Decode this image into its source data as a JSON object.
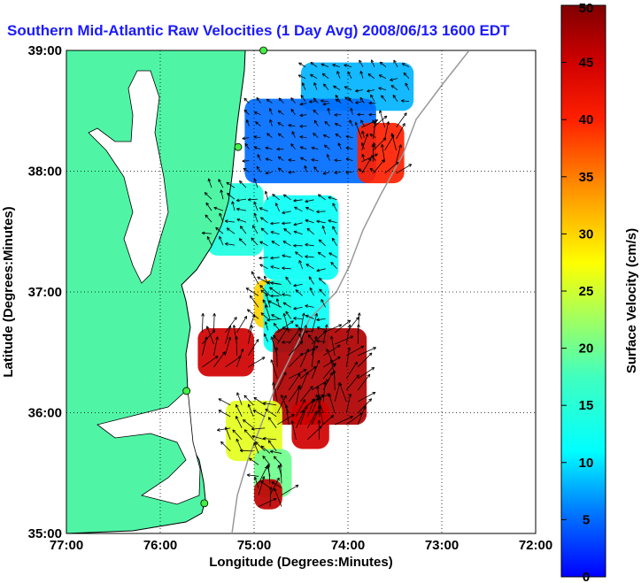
{
  "chart_data": {
    "type": "heatmap",
    "title": "Southern Mid-Atlantic Raw Velocities (1 Day Avg) 2008/06/13 1600 EDT",
    "xlabel": "Longitude (Degrees:Minutes)",
    "ylabel": "Latitude (Degrees:Minutes)",
    "colorbar_label": "Surface Velocity (cm/s)",
    "xlim": [
      -77,
      -72
    ],
    "ylim": [
      35,
      39
    ],
    "x_ticks": [
      {
        "value": -77,
        "label": "77:00"
      },
      {
        "value": -76,
        "label": "76:00"
      },
      {
        "value": -75,
        "label": "75:00"
      },
      {
        "value": -74,
        "label": "74:00"
      },
      {
        "value": -73,
        "label": "73:00"
      },
      {
        "value": -72,
        "label": "72:00"
      }
    ],
    "y_ticks": [
      {
        "value": 35,
        "label": "35:00"
      },
      {
        "value": 36,
        "label": "36:00"
      },
      {
        "value": 37,
        "label": "37:00"
      },
      {
        "value": 38,
        "label": "38:00"
      },
      {
        "value": 39,
        "label": "39:00"
      }
    ],
    "colorbar_range": [
      0,
      50
    ],
    "colorbar_ticks": [
      0,
      5,
      10,
      15,
      20,
      25,
      30,
      35,
      40,
      45,
      50
    ],
    "grid": true,
    "regions": [
      {
        "lon": [
          -74.5,
          -73.3
        ],
        "lat": [
          38.5,
          38.9
        ],
        "speed": 8
      },
      {
        "lon": [
          -75.1,
          -73.7
        ],
        "lat": [
          37.9,
          38.6
        ],
        "speed": 5
      },
      {
        "lon": [
          -75.5,
          -74.9
        ],
        "lat": [
          37.3,
          37.9
        ],
        "speed": 14
      },
      {
        "lon": [
          -74.9,
          -74.1
        ],
        "lat": [
          37.1,
          37.8
        ],
        "speed": 12
      },
      {
        "lon": [
          -73.9,
          -73.4
        ],
        "lat": [
          37.9,
          38.4
        ],
        "speed": 40
      },
      {
        "lon": [
          -75.0,
          -74.6
        ],
        "lat": [
          36.7,
          37.1
        ],
        "speed": 30
      },
      {
        "lon": [
          -74.9,
          -74.2
        ],
        "lat": [
          36.5,
          37.1
        ],
        "speed": 12
      },
      {
        "lon": [
          -75.6,
          -75.0
        ],
        "lat": [
          36.3,
          36.7
        ],
        "speed": 45
      },
      {
        "lon": [
          -74.8,
          -73.8
        ],
        "lat": [
          35.9,
          36.7
        ],
        "speed": 47
      },
      {
        "lon": [
          -75.3,
          -74.7
        ],
        "lat": [
          35.6,
          36.1
        ],
        "speed": 26
      },
      {
        "lon": [
          -74.6,
          -74.2
        ],
        "lat": [
          35.7,
          36.1
        ],
        "speed": 45
      },
      {
        "lon": [
          -75.0,
          -74.6
        ],
        "lat": [
          35.3,
          35.7
        ],
        "speed": 20
      },
      {
        "lon": [
          -75.0,
          -74.7
        ],
        "lat": [
          35.2,
          35.45
        ],
        "speed": 46
      }
    ]
  },
  "colors": {
    "land": "#4ff5a5",
    "title": "#1a1aff",
    "station": "#44ee44",
    "bathymetry": "#999999"
  },
  "markers": {
    "station_icon": "green-circle",
    "vector_icon": "arrow"
  }
}
